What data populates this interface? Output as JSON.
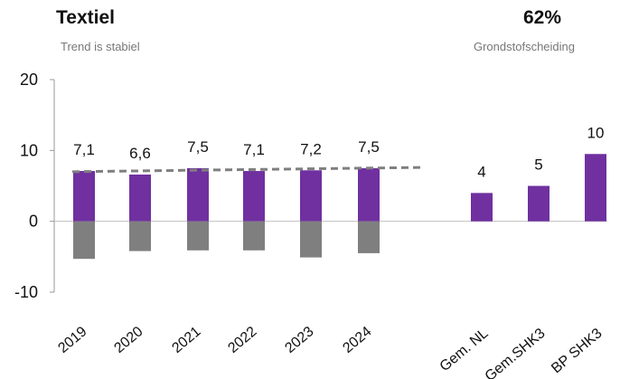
{
  "header": {
    "title": "Textiel",
    "subtitle": "Trend is stabiel",
    "metric_value": "62%",
    "metric_label": "Grondstofscheiding"
  },
  "chart_data": {
    "type": "bar",
    "title": "Textiel",
    "ylim": [
      -10,
      20
    ],
    "yticks": [
      -10,
      0,
      10,
      20
    ],
    "grid": false,
    "colors": {
      "positive": "#7030A0",
      "negative": "#7F7F7F",
      "trend": "#7F7F7F"
    },
    "groups": [
      {
        "name": "years",
        "categories": [
          "2019",
          "2020",
          "2021",
          "2022",
          "2023",
          "2024"
        ],
        "series": [
          {
            "name": "",
            "values": [
              7.1,
              6.6,
              7.5,
              7.1,
              7.2,
              7.5
            ]
          },
          {
            "name": "",
            "values": [
              -5.3,
              -4.2,
              -4.1,
              -4.1,
              -5.1,
              -4.5
            ]
          }
        ],
        "data_labels": [
          "7,1",
          "6,6",
          "7,5",
          "7,1",
          "7,2",
          "7,5"
        ],
        "trendline": {
          "style": "dashed",
          "from": 7.0,
          "to": 7.6
        }
      },
      {
        "name": "benchmarks",
        "categories": [
          "Gem. NL",
          "Gem.SHK3",
          "BP SHK3"
        ],
        "values": [
          4,
          5,
          9.5
        ],
        "data_labels": [
          "4",
          "5",
          "10"
        ]
      }
    ]
  }
}
